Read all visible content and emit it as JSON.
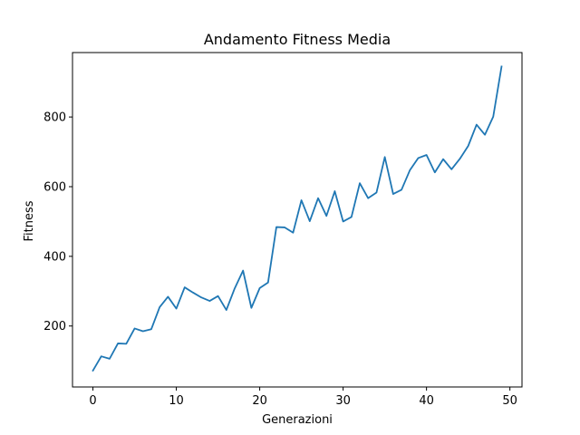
{
  "chart_data": {
    "type": "line",
    "title": "Andamento Fitness Media",
    "xlabel": "Generazioni",
    "ylabel": "Fitness",
    "xlim": [
      -2.45,
      51.45
    ],
    "ylim": [
      25,
      985
    ],
    "xticks": [
      0,
      10,
      20,
      30,
      40,
      50
    ],
    "yticks": [
      200,
      400,
      600,
      800
    ],
    "grid": false,
    "line_color": "#1f77b4",
    "series": [
      {
        "x": [
          0,
          1,
          2,
          3,
          4,
          5,
          6,
          7,
          8,
          9,
          10,
          11,
          12,
          13,
          14,
          15,
          16,
          17,
          18,
          19,
          20,
          21,
          22,
          23,
          24,
          25,
          26,
          27,
          28,
          29,
          30,
          31,
          32,
          33,
          34,
          35,
          36,
          37,
          38,
          39,
          40,
          41,
          42,
          43,
          44,
          45,
          46,
          47,
          48,
          49
        ],
        "values": [
          72,
          113,
          106,
          150,
          149,
          193,
          185,
          191,
          254,
          284,
          250,
          311,
          296,
          282,
          272,
          286,
          246,
          308,
          359,
          252,
          309,
          325,
          484,
          483,
          468,
          561,
          501,
          567,
          516,
          587,
          500,
          513,
          610,
          567,
          583,
          685,
          579,
          591,
          647,
          682,
          691,
          641,
          679,
          650,
          680,
          717,
          778,
          749,
          801,
          945
        ]
      }
    ]
  }
}
